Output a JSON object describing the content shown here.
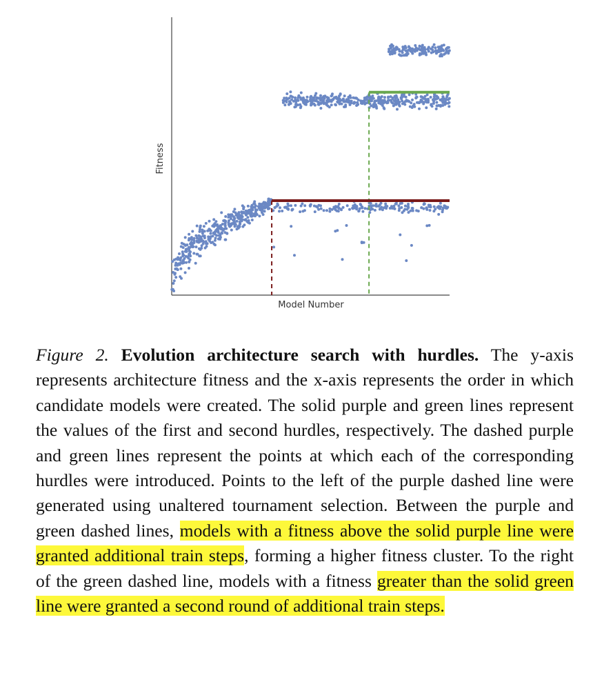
{
  "chart_data": {
    "type": "scatter",
    "xlabel": "Model Number",
    "ylabel": "Fitness",
    "hurdles": [
      {
        "name": "first hurdle",
        "color": "#7a1a1a",
        "introduced_at_x": 0.36,
        "value_y": 0.34
      },
      {
        "name": "second hurdle",
        "color": "#6aa84f",
        "introduced_at_x": 0.71,
        "value_y": 0.73
      }
    ],
    "point_color": "#6b88c4",
    "clusters": [
      {
        "label": "tournament-growth",
        "x_range": [
          0.0,
          0.36
        ],
        "y_start": 0.02,
        "y_end": 0.33
      },
      {
        "label": "below-hurdle-1",
        "x_range": [
          0.36,
          1.0
        ],
        "y_center": 0.31
      },
      {
        "label": "above-hurdle-1",
        "x_range": [
          0.4,
          1.0
        ],
        "y_center": 0.7
      },
      {
        "label": "above-hurdle-2",
        "x_range": [
          0.77,
          1.0
        ],
        "y_center": 0.88
      }
    ]
  },
  "caption": {
    "label": "Figure 2.",
    "title": "Evolution architecture search with hurdles.",
    "text_1": " The y-axis represents architecture fitness and the x-axis represents the order in which candidate models were created. The solid purple and green lines represent the values of the first and second hurdles, respectively. The dashed purple and green lines represent the points at which each of the corresponding hurdles were introduced. Points to the left of the purple dashed line were generated using unaltered tournament selection. Between the purple and green dashed lines, ",
    "highlight_1": "models with a fitness above the solid purple line were granted additional train steps",
    "text_2": ", forming a higher fitness cluster. To the right of the green dashed line, models with a fitness ",
    "highlight_2": "greater than the solid green line were granted a second round of additional train steps.",
    "highlight_color": "#fdf83a"
  }
}
